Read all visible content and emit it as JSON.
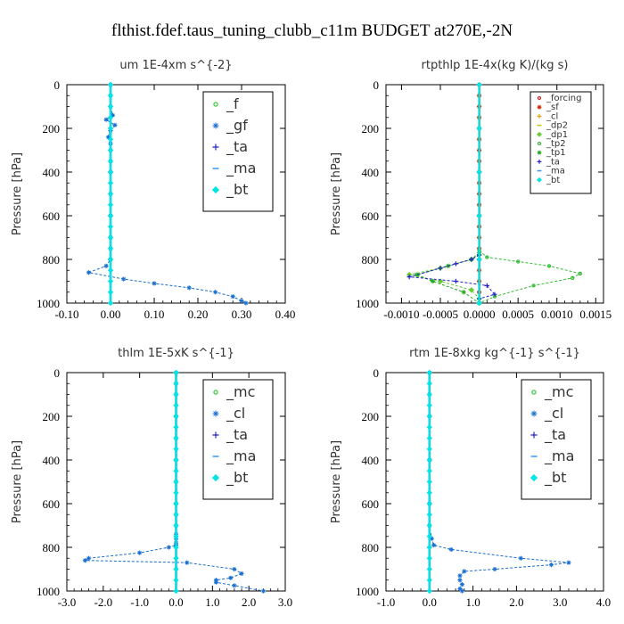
{
  "title": "flthist.fdef.taus_tuning_clubb_c11m  BUDGET at270E,-2N",
  "chart_data": [
    {
      "type": "line",
      "title": "um  1E-4xm s^{-2}",
      "ylabel": "Pressure [hPa]",
      "xlim": [
        -0.1,
        0.4
      ],
      "ylim": [
        1000,
        0
      ],
      "xticks": [
        "-0.10",
        "0.00",
        "0.10",
        "0.20",
        "0.30",
        "0.40"
      ],
      "xtick_values": [
        -0.1,
        0.0,
        0.1,
        0.2,
        0.3,
        0.4
      ],
      "yticks": [
        "0",
        "200",
        "400",
        "600",
        "800",
        "1000"
      ],
      "ytick_values": [
        0,
        200,
        400,
        600,
        800,
        1000
      ],
      "legend_position": "top-right",
      "legend_style": "large",
      "series": [
        {
          "name": "_f",
          "color": "#33cc33",
          "marker": "circle",
          "x": [
            0,
            0,
            0,
            0,
            0,
            0,
            0,
            0,
            0,
            0,
            0,
            0,
            0,
            0,
            0,
            0,
            0,
            0,
            0,
            0,
            0
          ],
          "y": [
            0,
            50,
            100,
            150,
            200,
            250,
            300,
            350,
            400,
            450,
            500,
            550,
            600,
            650,
            700,
            750,
            800,
            850,
            900,
            950,
            1000
          ]
        },
        {
          "name": "_gf",
          "color": "#1a6fd0",
          "marker": "star",
          "x": [
            0,
            0,
            0,
            0.005,
            -0.01,
            0.01,
            0,
            -0.005,
            0,
            0,
            0,
            0,
            0,
            0,
            0,
            0,
            0,
            -0.01,
            -0.05,
            0.03,
            0.1,
            0.18,
            0.24,
            0.28,
            0.3,
            0.31
          ],
          "y": [
            0,
            50,
            100,
            140,
            160,
            185,
            210,
            240,
            270,
            300,
            350,
            400,
            500,
            600,
            700,
            750,
            800,
            830,
            860,
            890,
            910,
            930,
            950,
            970,
            990,
            1000
          ]
        },
        {
          "name": "_ta",
          "color": "#2222cc",
          "marker": "plus",
          "x": [
            0,
            0,
            0,
            0,
            0,
            0
          ],
          "y": [
            0,
            200,
            400,
            600,
            800,
            1000
          ]
        },
        {
          "name": "_ma",
          "color": "#3399ff",
          "marker": "dash",
          "x": [
            0,
            0,
            0,
            0,
            0,
            0
          ],
          "y": [
            0,
            200,
            400,
            600,
            800,
            1000
          ]
        },
        {
          "name": "_bt",
          "color": "#00e5e5",
          "marker": "diamond",
          "x": [
            0,
            0,
            0,
            0,
            0,
            0,
            0,
            0,
            0,
            0,
            0,
            0,
            0,
            0,
            0,
            0,
            0,
            0,
            0,
            0,
            0
          ],
          "y": [
            0,
            50,
            100,
            150,
            200,
            250,
            300,
            350,
            400,
            450,
            500,
            550,
            600,
            650,
            700,
            750,
            800,
            850,
            900,
            950,
            1000
          ]
        }
      ]
    },
    {
      "type": "line",
      "title": "rtpthlp  1E-4x(kg K)/(kg s)",
      "ylabel": "Pressure [hPa]",
      "xlim": [
        -0.0012,
        0.0016
      ],
      "ylim": [
        1000,
        0
      ],
      "xticks": [
        "-0.0010",
        "-0.0005",
        "0.0000",
        "0.0005",
        "0.0010",
        "0.0015"
      ],
      "xtick_values": [
        -0.001,
        -0.0005,
        0.0,
        0.0005,
        0.001,
        0.0015
      ],
      "yticks": [
        "0",
        "200",
        "400",
        "600",
        "800",
        "1000"
      ],
      "ytick_values": [
        0,
        200,
        400,
        600,
        800,
        1000
      ],
      "legend_position": "top-right",
      "legend_style": "small",
      "series": [
        {
          "name": "_forcing",
          "color": "#cc2222",
          "marker": "circle",
          "x": [
            0,
            0,
            0,
            0,
            0,
            0,
            0,
            0,
            0,
            0,
            0,
            0,
            0,
            0,
            0,
            0,
            0,
            0,
            0,
            0,
            0
          ],
          "y": [
            0,
            50,
            100,
            150,
            200,
            250,
            300,
            350,
            400,
            450,
            500,
            550,
            600,
            650,
            700,
            750,
            800,
            850,
            900,
            950,
            1000
          ]
        },
        {
          "name": "_sf",
          "color": "#dd2200",
          "marker": "star",
          "x": [
            0,
            0,
            0,
            0,
            0,
            0,
            0,
            0,
            0,
            0,
            0,
            0,
            0,
            0,
            0,
            0,
            0,
            0,
            0,
            0,
            0
          ],
          "y": [
            0,
            50,
            100,
            150,
            200,
            250,
            300,
            350,
            400,
            450,
            500,
            550,
            600,
            650,
            700,
            750,
            800,
            850,
            900,
            950,
            1000
          ]
        },
        {
          "name": "_cl",
          "color": "#e8a000",
          "marker": "plus",
          "x": [
            0,
            0,
            0,
            0,
            0,
            0
          ],
          "y": [
            0,
            200,
            400,
            600,
            800,
            1000
          ]
        },
        {
          "name": "_dp2",
          "color": "#c8c800",
          "marker": "dash",
          "x": [
            0,
            0,
            0,
            0,
            0,
            0
          ],
          "y": [
            0,
            200,
            400,
            600,
            800,
            1000
          ]
        },
        {
          "name": "_dp1",
          "color": "#66cc33",
          "marker": "diamond",
          "x": [
            0,
            -0.0001,
            -0.0005,
            -0.0009,
            -0.0005,
            -0.0001,
            0,
            0
          ],
          "y": [
            780,
            800,
            840,
            870,
            900,
            940,
            980,
            1000
          ]
        },
        {
          "name": "_tp2",
          "color": "#33bb33",
          "marker": "circle",
          "x": [
            0,
            0.0001,
            0.0005,
            0.0009,
            0.0013,
            0.0012,
            0.0007,
            0.0002,
            0
          ],
          "y": [
            760,
            790,
            810,
            830,
            865,
            885,
            920,
            970,
            1000
          ]
        },
        {
          "name": "_tp1",
          "color": "#22aa22",
          "marker": "star",
          "x": [
            0,
            -0.0001,
            -0.0004,
            -0.0008,
            -0.0006,
            -0.0002,
            0
          ],
          "y": [
            770,
            800,
            830,
            870,
            900,
            950,
            1000
          ]
        },
        {
          "name": "_ta",
          "color": "#2222cc",
          "marker": "plus",
          "x": [
            0,
            -0.0001,
            -0.0003,
            -0.0005,
            -0.0009,
            -0.0003,
            0.0001,
            0.0002,
            0,
            0
          ],
          "y": [
            780,
            800,
            820,
            840,
            880,
            900,
            920,
            960,
            980,
            1000
          ]
        },
        {
          "name": "_ma",
          "color": "#3399ff",
          "marker": "dash",
          "x": [
            0,
            0,
            0,
            0,
            0,
            0
          ],
          "y": [
            0,
            200,
            400,
            600,
            800,
            1000
          ]
        },
        {
          "name": "_bt",
          "color": "#00e5e5",
          "marker": "diamond",
          "x": [
            0,
            0,
            0,
            0,
            0,
            0
          ],
          "y": [
            0,
            200,
            400,
            600,
            800,
            1000
          ]
        }
      ]
    },
    {
      "type": "line",
      "title": "thlm  1E-5xK s^{-1}",
      "ylabel": "Pressure [hPa]",
      "xlim": [
        -3.0,
        3.0
      ],
      "ylim": [
        1000,
        0
      ],
      "xticks": [
        "-3.0",
        "-2.0",
        "-1.0",
        "0.0",
        "1.0",
        "2.0",
        "3.0"
      ],
      "xtick_values": [
        -3,
        -2,
        -1,
        0,
        1,
        2,
        3
      ],
      "yticks": [
        "0",
        "200",
        "400",
        "600",
        "800",
        "1000"
      ],
      "ytick_values": [
        0,
        200,
        400,
        600,
        800,
        1000
      ],
      "legend_position": "top-right",
      "legend_style": "large",
      "series": [
        {
          "name": "_mc",
          "color": "#33cc33",
          "marker": "circle",
          "x": [
            0,
            0,
            0,
            0,
            0,
            0,
            0,
            0,
            0,
            0,
            0,
            0,
            0,
            0,
            0,
            0,
            0,
            0,
            0,
            0,
            0
          ],
          "y": [
            0,
            50,
            100,
            150,
            200,
            250,
            300,
            350,
            400,
            450,
            500,
            550,
            600,
            650,
            700,
            750,
            800,
            850,
            900,
            950,
            1000
          ]
        },
        {
          "name": "_cl",
          "color": "#1a6fd0",
          "marker": "star",
          "x": [
            0,
            0,
            0,
            0,
            0,
            0,
            0,
            0,
            0,
            0,
            0,
            0,
            0,
            0,
            -0.2,
            -1.0,
            -2.4,
            -2.5,
            0.3,
            1.6,
            1.8,
            1.5,
            1.1,
            1.1,
            1.6,
            2.4
          ],
          "y": [
            0,
            50,
            100,
            200,
            300,
            400,
            500,
            600,
            650,
            700,
            740,
            760,
            780,
            790,
            800,
            825,
            850,
            860,
            870,
            900,
            920,
            940,
            950,
            960,
            975,
            1000
          ]
        },
        {
          "name": "_ta",
          "color": "#2222cc",
          "marker": "plus",
          "x": [
            0,
            0,
            0,
            0,
            0,
            0
          ],
          "y": [
            0,
            200,
            400,
            600,
            800,
            1000
          ]
        },
        {
          "name": "_ma",
          "color": "#3399ff",
          "marker": "dash",
          "x": [
            0,
            0,
            0,
            0,
            0,
            0
          ],
          "y": [
            0,
            200,
            400,
            600,
            800,
            1000
          ]
        },
        {
          "name": "_bt",
          "color": "#00e5e5",
          "marker": "diamond",
          "x": [
            0,
            0,
            0,
            0,
            0,
            0,
            0,
            0,
            0,
            0,
            0,
            0,
            0,
            0,
            0,
            0,
            0,
            0,
            0,
            0,
            0
          ],
          "y": [
            0,
            50,
            100,
            150,
            200,
            250,
            300,
            350,
            400,
            450,
            500,
            550,
            600,
            650,
            700,
            750,
            800,
            850,
            900,
            950,
            1000
          ]
        }
      ]
    },
    {
      "type": "line",
      "title": "rtm  1E-8xkg kg^{-1} s^{-1}",
      "ylabel": "Pressure [hPa]",
      "xlim": [
        -1.0,
        4.0
      ],
      "ylim": [
        1000,
        0
      ],
      "xticks": [
        "-1.0",
        "0.0",
        "1.0",
        "2.0",
        "3.0",
        "4.0"
      ],
      "xtick_values": [
        -1,
        0,
        1,
        2,
        3,
        4
      ],
      "yticks": [
        "0",
        "200",
        "400",
        "600",
        "800",
        "1000"
      ],
      "ytick_values": [
        0,
        200,
        400,
        600,
        800,
        1000
      ],
      "legend_position": "top-right",
      "legend_style": "large",
      "series": [
        {
          "name": "_mc",
          "color": "#33cc33",
          "marker": "circle",
          "x": [
            0,
            0,
            0,
            0,
            0,
            0,
            0,
            0,
            0,
            0,
            0,
            0,
            0,
            0,
            0,
            0,
            0,
            0,
            0,
            0,
            0
          ],
          "y": [
            0,
            50,
            100,
            150,
            200,
            250,
            300,
            350,
            400,
            450,
            500,
            550,
            600,
            650,
            700,
            750,
            800,
            850,
            900,
            950,
            1000
          ]
        },
        {
          "name": "_cl",
          "color": "#1a6fd0",
          "marker": "star",
          "x": [
            0,
            0,
            0,
            0,
            0,
            0,
            0.05,
            0.1,
            0.5,
            2.1,
            3.2,
            2.8,
            1.5,
            0.8,
            0.7,
            0.7,
            0.75,
            0.7,
            0.75
          ],
          "y": [
            0,
            100,
            200,
            400,
            600,
            700,
            760,
            790,
            810,
            850,
            870,
            880,
            900,
            910,
            930,
            950,
            970,
            990,
            1000
          ]
        },
        {
          "name": "_ta",
          "color": "#2222cc",
          "marker": "plus",
          "x": [
            0,
            0,
            0,
            0,
            0,
            0
          ],
          "y": [
            0,
            200,
            400,
            600,
            800,
            1000
          ]
        },
        {
          "name": "_ma",
          "color": "#3399ff",
          "marker": "dash",
          "x": [
            0,
            0,
            0,
            0,
            0,
            0
          ],
          "y": [
            0,
            200,
            400,
            600,
            800,
            1000
          ]
        },
        {
          "name": "_bt",
          "color": "#00e5e5",
          "marker": "diamond",
          "x": [
            0,
            0,
            0,
            0,
            0,
            0,
            0,
            0,
            0,
            0,
            0,
            0,
            0,
            0,
            0,
            0,
            0,
            0,
            0,
            0,
            0
          ],
          "y": [
            0,
            50,
            100,
            150,
            200,
            250,
            300,
            350,
            400,
            450,
            500,
            550,
            600,
            650,
            700,
            750,
            800,
            850,
            900,
            950,
            1000
          ]
        }
      ]
    }
  ]
}
